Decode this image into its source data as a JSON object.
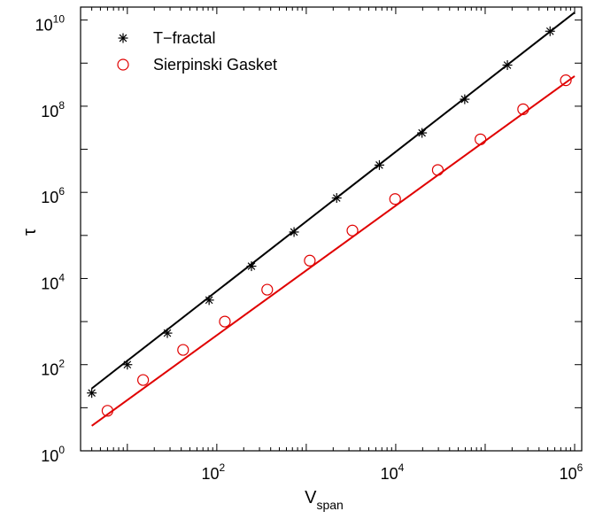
{
  "chart_data": {
    "type": "scatter",
    "title": "",
    "xlabel": {
      "main": "V",
      "sub": "span"
    },
    "ylabel": "τ",
    "xscale": "log",
    "yscale": "log",
    "xlim": [
      3,
      1200000
    ],
    "ylim": [
      1,
      20000000000
    ],
    "grid": false,
    "legend_position": "top-left",
    "x_ticks": [
      {
        "value": 100,
        "base": "10",
        "exp": "2"
      },
      {
        "value": 10000,
        "base": "10",
        "exp": "4"
      },
      {
        "value": 1000000,
        "base": "10",
        "exp": "6"
      }
    ],
    "y_ticks": [
      {
        "value": 1,
        "base": "10",
        "exp": "0"
      },
      {
        "value": 100,
        "base": "10",
        "exp": "2"
      },
      {
        "value": 10000,
        "base": "10",
        "exp": "4"
      },
      {
        "value": 1000000,
        "base": "10",
        "exp": "6"
      },
      {
        "value": 100000000,
        "base": "10",
        "exp": "8"
      },
      {
        "value": 10000000000,
        "base": "10",
        "exp": "10"
      }
    ],
    "series": [
      {
        "name": "T−fractal",
        "marker": "asterisk",
        "color": "#000000",
        "x": [
          4,
          10,
          28,
          82,
          244,
          730,
          2188,
          6562,
          19684,
          59050,
          177148,
          531442
        ],
        "y": [
          22,
          100,
          540,
          3150,
          19300,
          120000,
          740000,
          4300000,
          24000000,
          145000000,
          900000000,
          5500000000
        ],
        "fit": {
          "x": [
            4,
            1000000
          ],
          "y": [
            28,
            15000000000
          ]
        }
      },
      {
        "name": "Sierpinski Gasket",
        "marker": "circle",
        "color": "#e00000",
        "x": [
          6,
          15,
          42,
          123,
          366,
          1095,
          3282,
          9843,
          29526,
          88575,
          265722,
          797163
        ],
        "y": [
          8.5,
          44,
          220,
          1000,
          5500,
          26000,
          130000,
          700000,
          3300000,
          17000000,
          85000000,
          400000000
        ],
        "fit": {
          "x": [
            4,
            1000000
          ],
          "y": [
            3.8,
            500000000
          ]
        }
      }
    ]
  }
}
